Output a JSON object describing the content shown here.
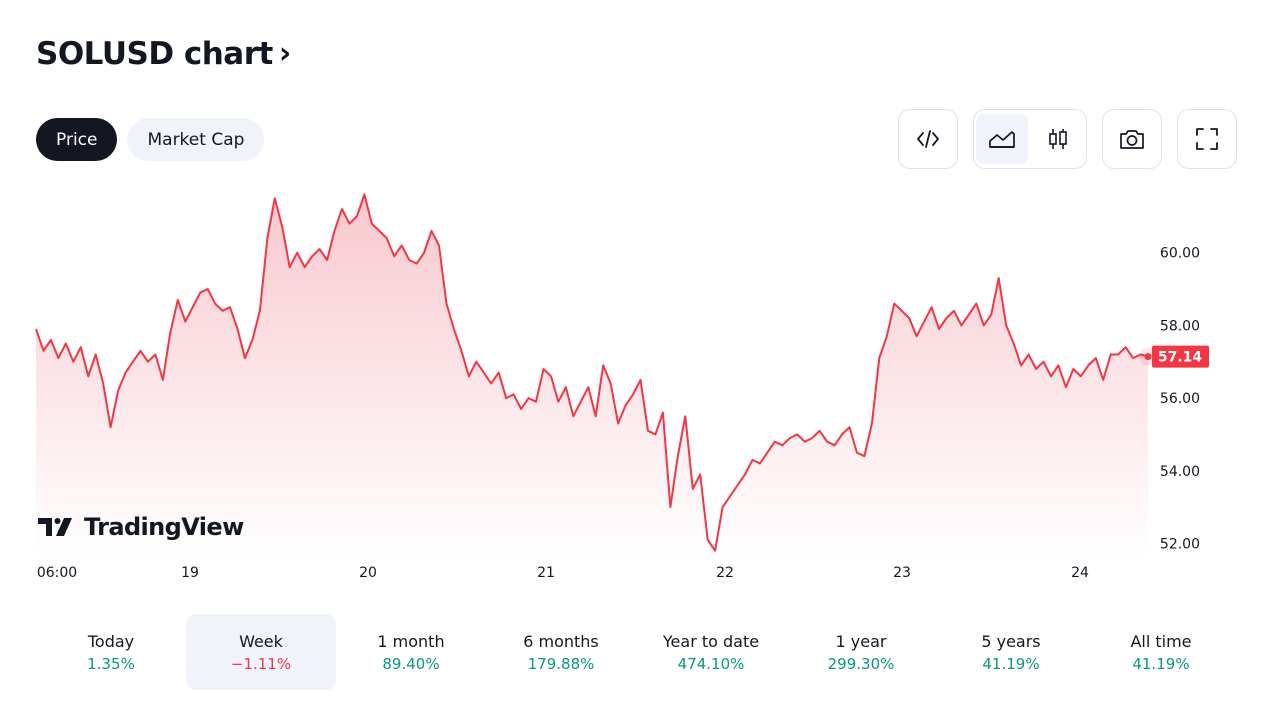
{
  "header": {
    "title": "SOLUSD chart",
    "title_chevron": "›"
  },
  "tabs": [
    {
      "label": "Price",
      "active": true
    },
    {
      "label": "Market Cap",
      "active": false
    }
  ],
  "toolbar": {
    "buttons": [
      {
        "name": "embed-code-button",
        "icon": "code-icon"
      },
      {
        "name": "area-chart-button",
        "icon": "area-chart-icon",
        "selected": true
      },
      {
        "name": "candles-button",
        "icon": "candles-icon"
      },
      {
        "name": "snapshot-button",
        "icon": "camera-icon"
      },
      {
        "name": "fullscreen-button",
        "icon": "fullscreen-icon"
      }
    ]
  },
  "brand": {
    "logo_text": "TradingView"
  },
  "chart_data": {
    "type": "area",
    "x_tick_labels": [
      "06:00",
      "19",
      "20",
      "21",
      "22",
      "23",
      "24"
    ],
    "y_tick_labels": [
      "60.00",
      "58.00",
      "56.00",
      "54.00",
      "52.00"
    ],
    "y_ticks": [
      60,
      58,
      56,
      54,
      52
    ],
    "ylim": [
      51.6,
      62.0
    ],
    "last_value_label": "57.14",
    "line_color": "#f23645",
    "fill_top_color": "#f7c5cb",
    "fill_bottom_color": "#ffffff",
    "series": [
      {
        "values": [
          57.9,
          57.3,
          57.6,
          57.1,
          57.5,
          57.0,
          57.4,
          56.6,
          57.2,
          56.4,
          55.2,
          56.2,
          56.7,
          57.0,
          57.3,
          57.0,
          57.2,
          56.5,
          57.8,
          58.7,
          58.1,
          58.5,
          58.9,
          59.0,
          58.6,
          58.4,
          58.5,
          57.9,
          57.1,
          57.6,
          58.4,
          60.4,
          61.5,
          60.7,
          59.6,
          60.0,
          59.6,
          59.9,
          60.1,
          59.8,
          60.6,
          61.2,
          60.8,
          61.0,
          61.6,
          60.8,
          60.6,
          60.4,
          59.9,
          60.2,
          59.8,
          59.7,
          60.0,
          60.6,
          60.2,
          58.6,
          57.9,
          57.3,
          56.6,
          57.0,
          56.7,
          56.4,
          56.7,
          56.0,
          56.1,
          55.7,
          56.0,
          55.9,
          56.8,
          56.6,
          55.9,
          56.3,
          55.5,
          55.9,
          56.3,
          55.5,
          56.9,
          56.4,
          55.3,
          55.8,
          56.1,
          56.5,
          55.1,
          55.0,
          55.6,
          53.0,
          54.4,
          55.5,
          53.5,
          53.9,
          52.1,
          51.8,
          53.0,
          53.3,
          53.6,
          53.9,
          54.3,
          54.2,
          54.5,
          54.8,
          54.7,
          54.9,
          55.0,
          54.8,
          54.9,
          55.1,
          54.8,
          54.7,
          55.0,
          55.2,
          54.5,
          54.4,
          55.3,
          57.1,
          57.7,
          58.6,
          58.4,
          58.2,
          57.7,
          58.1,
          58.5,
          57.9,
          58.2,
          58.4,
          58.0,
          58.3,
          58.6,
          58.0,
          58.3,
          59.3,
          58.0,
          57.5,
          56.9,
          57.2,
          56.8,
          57.0,
          56.6,
          56.9,
          56.3,
          56.8,
          56.6,
          56.9,
          57.1,
          56.5,
          57.2,
          57.2,
          57.4,
          57.1,
          57.2,
          57.14
        ]
      }
    ]
  },
  "periods": [
    {
      "label": "Today",
      "value": "1.35%",
      "trend": "pos"
    },
    {
      "label": "Week",
      "value": "−1.11%",
      "trend": "neg",
      "selected": true
    },
    {
      "label": "1 month",
      "value": "89.40%",
      "trend": "pos"
    },
    {
      "label": "6 months",
      "value": "179.88%",
      "trend": "pos"
    },
    {
      "label": "Year to date",
      "value": "474.10%",
      "trend": "pos"
    },
    {
      "label": "1 year",
      "value": "299.30%",
      "trend": "pos"
    },
    {
      "label": "5 years",
      "value": "41.19%",
      "trend": "pos"
    },
    {
      "label": "All time",
      "value": "41.19%",
      "trend": "pos"
    }
  ]
}
